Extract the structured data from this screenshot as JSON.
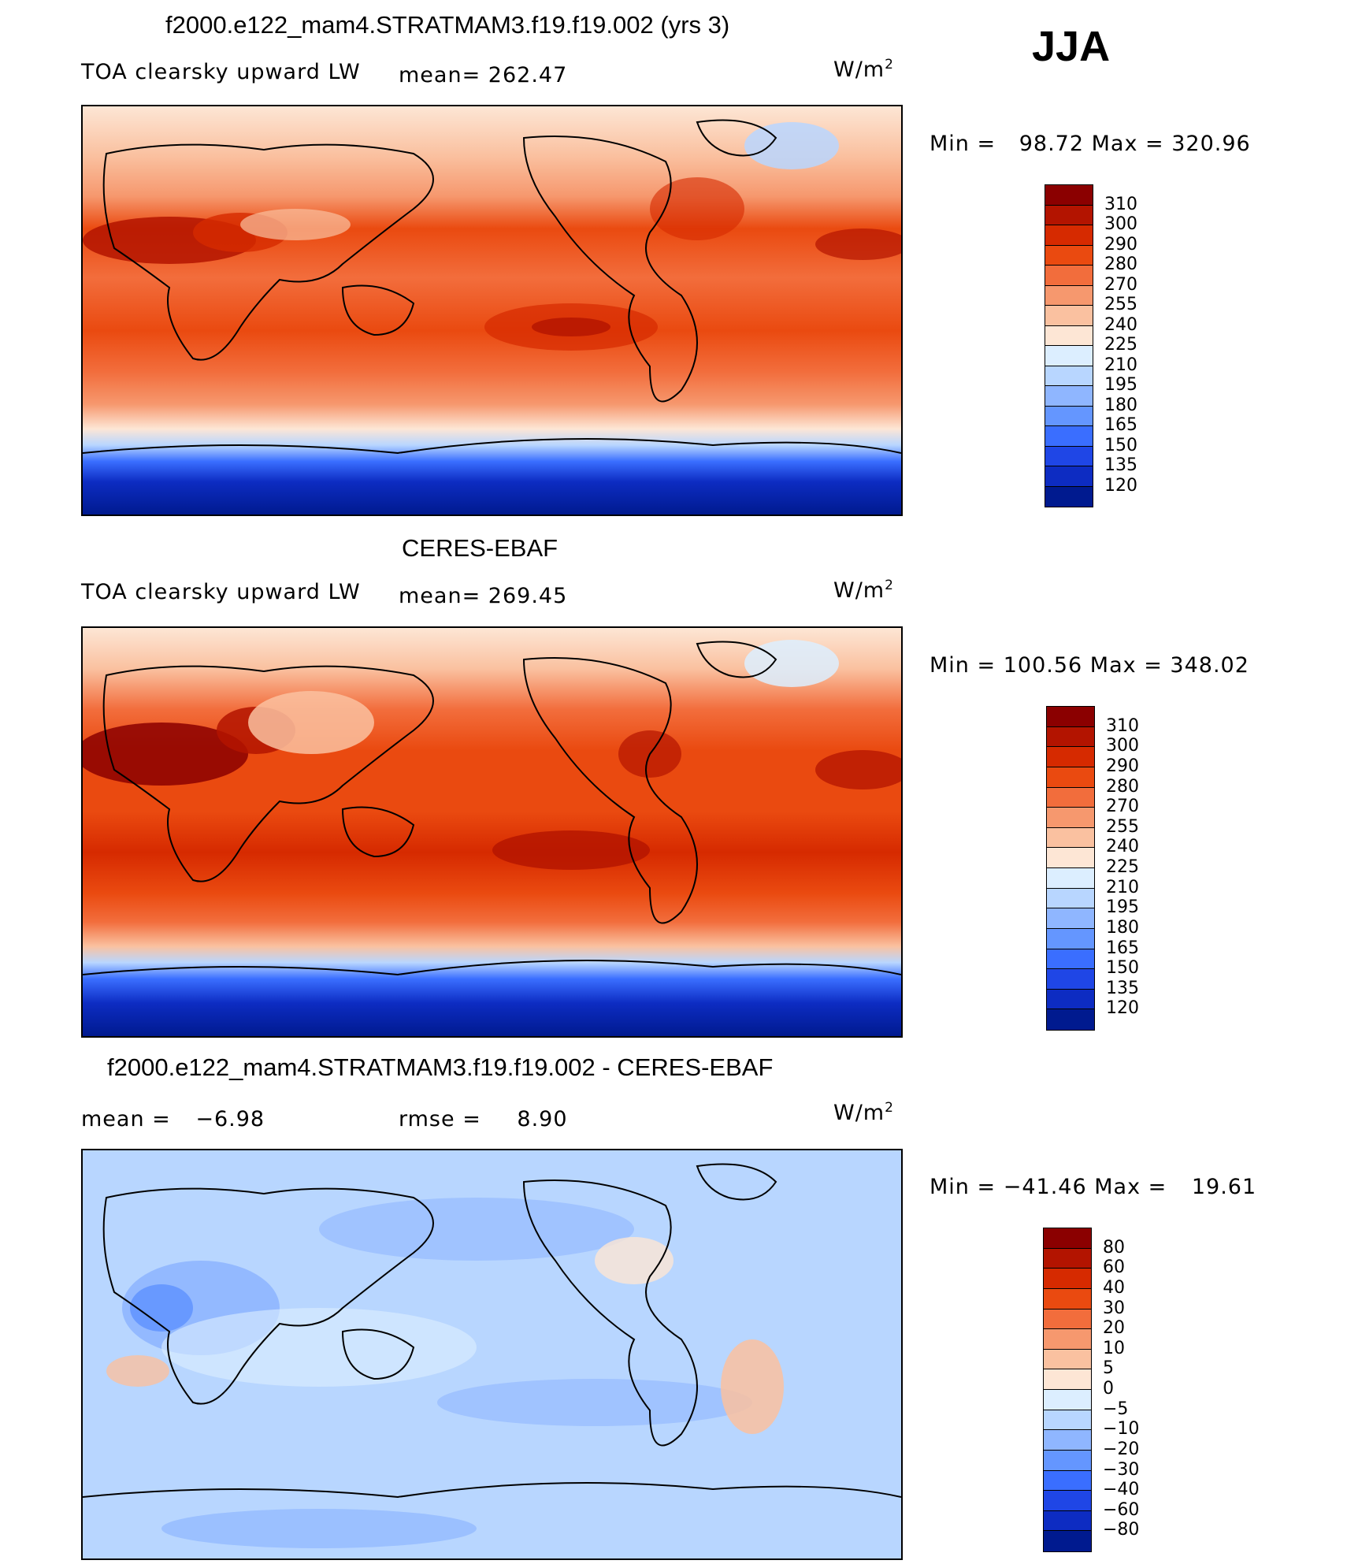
{
  "season": "JJA",
  "chart_data": [
    {
      "type": "heatmap",
      "title": "f2000.e122_mam4.STRATMAM3.f19.f19.002 (yrs 3)",
      "variable": "TOA clearsky upward LW",
      "mean_label": "mean=",
      "mean": "262.47",
      "units": "W/m",
      "units_sup": "2",
      "min_label": "Min  =",
      "min": "98.72",
      "max_label": "Max  =",
      "max": "320.96",
      "levels": [
        "310",
        "300",
        "290",
        "280",
        "270",
        "255",
        "240",
        "225",
        "210",
        "195",
        "180",
        "165",
        "150",
        "135",
        "120"
      ],
      "colors": [
        "#8b0000",
        "#b31400",
        "#d62a00",
        "#ea4a10",
        "#f26d3c",
        "#f6986e",
        "#fac1a0",
        "#fde6d5",
        "#dceeff",
        "#b8d6ff",
        "#8fb6ff",
        "#6496ff",
        "#3a6eff",
        "#1f46e6",
        "#0d2cc2",
        "#001a8f"
      ]
    },
    {
      "type": "heatmap",
      "title": "CERES-EBAF",
      "variable": "TOA clearsky upward LW",
      "mean_label": "mean=",
      "mean": "269.45",
      "units": "W/m",
      "units_sup": "2",
      "min_label": "Min  =",
      "min": "100.56",
      "max_label": "Max  =",
      "max": "348.02",
      "levels": [
        "310",
        "300",
        "290",
        "280",
        "270",
        "255",
        "240",
        "225",
        "210",
        "195",
        "180",
        "165",
        "150",
        "135",
        "120"
      ],
      "colors": [
        "#8b0000",
        "#b31400",
        "#d62a00",
        "#ea4a10",
        "#f26d3c",
        "#f6986e",
        "#fac1a0",
        "#fde6d5",
        "#dceeff",
        "#b8d6ff",
        "#8fb6ff",
        "#6496ff",
        "#3a6eff",
        "#1f46e6",
        "#0d2cc2",
        "#001a8f"
      ]
    },
    {
      "type": "heatmap",
      "title": "f2000.e122_mam4.STRATMAM3.f19.f19.002 - CERES-EBAF",
      "mean_label": "mean  =",
      "mean": "−6.98",
      "rmse_label": "rmse  =",
      "rmse": "8.90",
      "units": "W/m",
      "units_sup": "2",
      "min_label": "Min  =",
      "min": "−41.46",
      "max_label": "Max  =",
      "max": "19.61",
      "levels": [
        "80",
        "60",
        "40",
        "30",
        "20",
        "10",
        "5",
        "0",
        "−5",
        "−10",
        "−20",
        "−30",
        "−40",
        "−60",
        "−80"
      ],
      "colors": [
        "#8b0000",
        "#b31400",
        "#d62a00",
        "#ea4a10",
        "#f26d3c",
        "#f6986e",
        "#fac1a0",
        "#fde6d5",
        "#dceeff",
        "#b8d6ff",
        "#8fb6ff",
        "#6496ff",
        "#3a6eff",
        "#1f46e6",
        "#0d2cc2",
        "#001a8f"
      ]
    }
  ]
}
